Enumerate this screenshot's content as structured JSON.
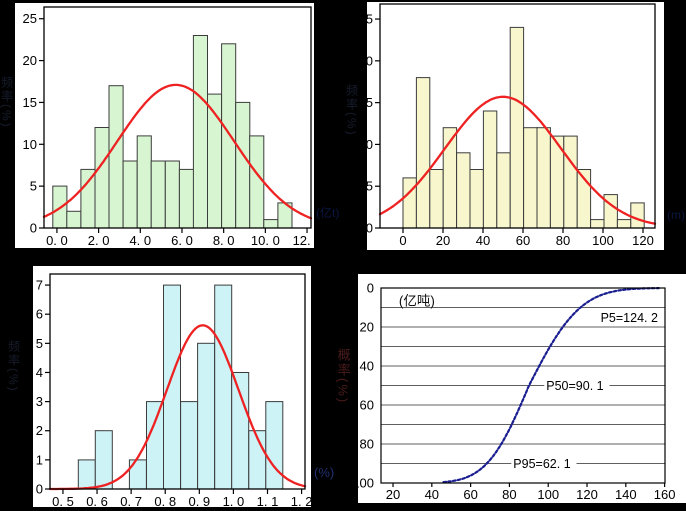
{
  "figure": {
    "background": "#000000",
    "panel_background": "#ffffff",
    "side_labels": [
      {
        "id": "tl-y-axis-label",
        "text": "频率(%)",
        "color": "#1d2438"
      },
      {
        "id": "tr-y-axis-label",
        "text": "频率(%)",
        "color": "#1d2438"
      },
      {
        "id": "bl-y-axis-label",
        "text": "频率(%)",
        "color": "#1d2438"
      },
      {
        "id": "br-y-axis-label",
        "text": "概率(%)",
        "color": "#5d2222"
      },
      {
        "id": "tl-x-unit-label",
        "text": "(亿t)",
        "color": "#0e1c52"
      },
      {
        "id": "tr-x-unit-label",
        "text": "(m)",
        "color": "#0e1c52"
      },
      {
        "id": "bl-x-unit-label",
        "text": "(%)",
        "color": "#2c3d8f"
      }
    ]
  },
  "chart_data": [
    {
      "type": "histogram",
      "name": "histogram-top-left",
      "bar_color": "#d6f5d0",
      "bar_edge_color": "#3c3c3c",
      "curve": {
        "shape": "normal-pdf",
        "color": "#ee2222",
        "mean": 5.7,
        "sigma": 2.8,
        "peak": 17.1
      },
      "bins": {
        "start": -0.2,
        "width": 0.675
      },
      "frequencies": [
        5,
        2,
        7,
        12,
        17,
        8,
        11,
        8,
        8,
        7,
        23,
        16,
        22,
        15,
        11,
        1,
        3
      ],
      "x_ticks": [
        {
          "value": 0,
          "label": "0. 0"
        },
        {
          "value": 2,
          "label": "2. 0"
        },
        {
          "value": 4,
          "label": "4. 0"
        },
        {
          "value": 6,
          "label": "6. 0"
        },
        {
          "value": 8,
          "label": "8. 0"
        },
        {
          "value": 10,
          "label": "10. 0"
        },
        {
          "value": 12,
          "label": "12. 0"
        }
      ],
      "y_ticks": [
        {
          "value": 0,
          "label": "0"
        },
        {
          "value": 5,
          "label": "5"
        },
        {
          "value": 10,
          "label": "10"
        },
        {
          "value": 15,
          "label": "15"
        },
        {
          "value": 20,
          "label": "20"
        },
        {
          "value": 25,
          "label": "25"
        }
      ],
      "xlim": [
        -0.62,
        12.19
      ],
      "ylim": [
        0,
        26.4
      ]
    },
    {
      "type": "histogram",
      "name": "histogram-top-right",
      "bar_color": "#f7f6cd",
      "bar_edge_color": "#3c3c3c",
      "curve": {
        "shape": "normal-pdf",
        "color": "#ee2222",
        "mean": 50,
        "sigma": 29,
        "peak": 15.7
      },
      "bins": {
        "start": 0,
        "width": 6.7
      },
      "frequencies": [
        6,
        18,
        7,
        12,
        9,
        7,
        14,
        9,
        24,
        12,
        12,
        11,
        11,
        7,
        1,
        4,
        1,
        3
      ],
      "x_ticks": [
        {
          "value": 0,
          "label": "0"
        },
        {
          "value": 20,
          "label": "20"
        },
        {
          "value": 40,
          "label": "40"
        },
        {
          "value": 60,
          "label": "60"
        },
        {
          "value": 80,
          "label": "80"
        },
        {
          "value": 100,
          "label": "100"
        },
        {
          "value": 120,
          "label": "120"
        }
      ],
      "y_ticks": [
        {
          "value": 0,
          "label": "0"
        },
        {
          "value": 5,
          "label": "5"
        },
        {
          "value": 10,
          "label": "10"
        },
        {
          "value": 15,
          "label": "15"
        },
        {
          "value": 20,
          "label": "20"
        },
        {
          "value": 25,
          "label": "25"
        }
      ],
      "xlim": [
        -11.5,
        126
      ],
      "ylim": [
        0,
        26.8
      ]
    },
    {
      "type": "histogram",
      "name": "histogram-bottom-left",
      "bar_color": "#cdf3f7",
      "bar_edge_color": "#3c3c3c",
      "curve": {
        "shape": "normal-pdf",
        "color": "#ee2222",
        "mean": 0.91,
        "sigma": 0.105,
        "peak": 5.62
      },
      "bins": {
        "start": 0.545,
        "width": 0.05
      },
      "frequencies": [
        1,
        2,
        0,
        1,
        3,
        7,
        3,
        5,
        7,
        4,
        2,
        3
      ],
      "x_ticks": [
        {
          "value": 0.5,
          "label": "0. 5"
        },
        {
          "value": 0.6,
          "label": "0. 6"
        },
        {
          "value": 0.7,
          "label": "0. 7"
        },
        {
          "value": 0.8,
          "label": "0. 8"
        },
        {
          "value": 0.9,
          "label": "0. 9"
        },
        {
          "value": 1.0,
          "label": "1. 0"
        },
        {
          "value": 1.1,
          "label": "1. 1"
        },
        {
          "value": 1.2,
          "label": "1. 2"
        }
      ],
      "y_ticks": [
        {
          "value": 0,
          "label": "0"
        },
        {
          "value": 1,
          "label": "1"
        },
        {
          "value": 2,
          "label": "2"
        },
        {
          "value": 3,
          "label": "3"
        },
        {
          "value": 4,
          "label": "4"
        },
        {
          "value": 5,
          "label": "5"
        },
        {
          "value": 6,
          "label": "6"
        },
        {
          "value": 7,
          "label": "7"
        }
      ],
      "xlim": [
        0.462,
        1.21
      ],
      "ylim": [
        0,
        7.38
      ]
    },
    {
      "type": "cdf",
      "name": "cumulative-probability-curve",
      "curve": {
        "shape": "inverted-normal-cdf",
        "color": "#181d8f",
        "mean": 90.1,
        "sigma_low": 17.0,
        "sigma_high": 20.7,
        "x_start": 46,
        "x_end": 157,
        "style": "dotted"
      },
      "grid": {
        "y_step": 10,
        "color": "#606060"
      },
      "unit_label": {
        "text": "(亿吨)",
        "x": 23,
        "y": 7
      },
      "annotations": [
        {
          "text": "P5=124. 2",
          "x": 127,
          "y": 15
        },
        {
          "text": "P50=90. 1",
          "x": 99,
          "y": 50
        },
        {
          "text": "P95=62. 1",
          "x": 82,
          "y": 90
        }
      ],
      "x_ticks": [
        {
          "value": 20,
          "label": "20"
        },
        {
          "value": 40,
          "label": "40"
        },
        {
          "value": 60,
          "label": "60"
        },
        {
          "value": 80,
          "label": "80"
        },
        {
          "value": 100,
          "label": "100"
        },
        {
          "value": 120,
          "label": "120"
        },
        {
          "value": 140,
          "label": "140"
        },
        {
          "value": 160,
          "label": "160"
        }
      ],
      "y_ticks": [
        {
          "value": 0,
          "label": "0"
        },
        {
          "value": 20,
          "label": "20"
        },
        {
          "value": 40,
          "label": "40"
        },
        {
          "value": 60,
          "label": "60"
        },
        {
          "value": 80,
          "label": "80"
        },
        {
          "value": 100,
          "label": "100"
        }
      ],
      "xlim": [
        13.8,
        160.2
      ],
      "ylim": [
        0,
        100
      ],
      "y_inverted": true
    }
  ]
}
